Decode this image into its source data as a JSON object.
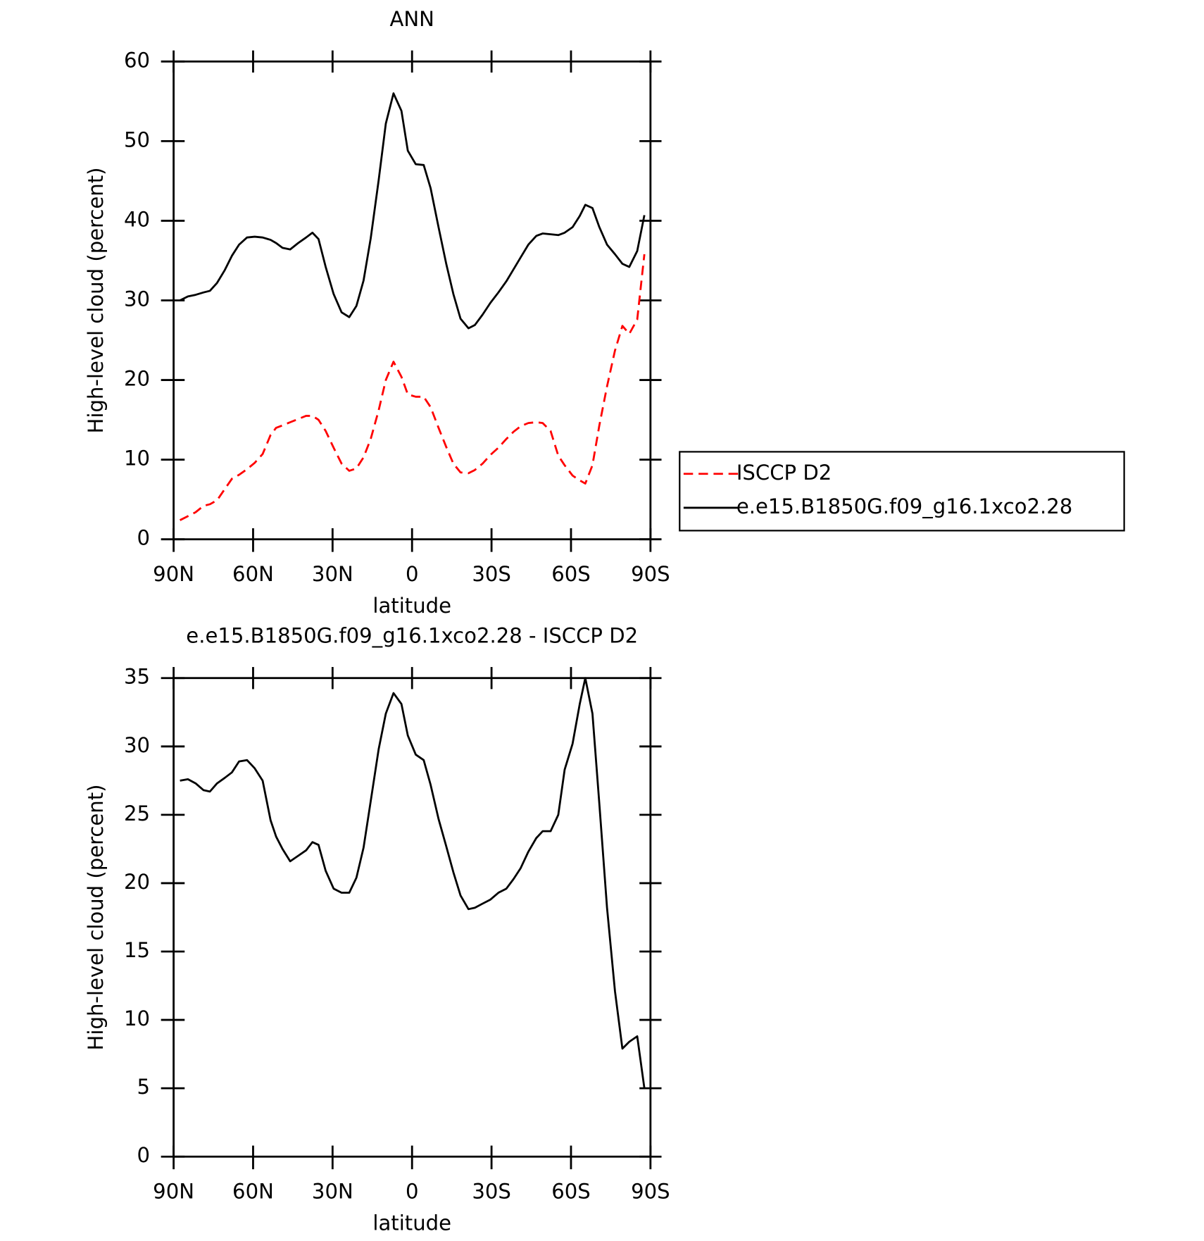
{
  "chart_data": [
    {
      "type": "line",
      "title": "ANN",
      "xlabel": "latitude",
      "ylabel": "High-level cloud (percent)",
      "xlim": [
        90,
        -90
      ],
      "xticks": [
        {
          "value": 90,
          "label": "90N"
        },
        {
          "value": 60,
          "label": "60N"
        },
        {
          "value": 30,
          "label": "30N"
        },
        0,
        {
          "value": -30,
          "label": "30S"
        },
        {
          "value": -60,
          "label": "60S"
        },
        {
          "value": -90,
          "label": "90S"
        }
      ],
      "ylim": [
        0,
        60
      ],
      "yticks": [
        0,
        10,
        20,
        30,
        40,
        50,
        60
      ],
      "legend": "right",
      "x": [
        87.6,
        84.6,
        81.7,
        78.7,
        76.3,
        73.6,
        70.7,
        68.0,
        65.3,
        62.3,
        59.4,
        56.4,
        53.4,
        51.3,
        48.9,
        46.0,
        43.0,
        40.0,
        37.6,
        35.3,
        32.6,
        29.6,
        26.6,
        23.7,
        21.0,
        18.3,
        15.6,
        12.6,
        9.9,
        7.0,
        4.0,
        1.6,
        -1.4,
        -4.4,
        -7.0,
        -10.0,
        -12.9,
        -15.6,
        -18.3,
        -21.3,
        -23.7,
        -26.6,
        -29.6,
        -32.6,
        -35.6,
        -38.3,
        -41.0,
        -43.9,
        -46.9,
        -49.3,
        -52.3,
        -55.2,
        -57.6,
        -60.6,
        -63.3,
        -65.4,
        -68.1,
        -70.7,
        -73.6,
        -76.6,
        -79.4,
        -82.0,
        -85.0,
        -87.7
      ],
      "series": [
        {
          "name": "ISCCP D2",
          "color": "#ff0000",
          "dashed": true,
          "values": [
            2.4,
            2.9,
            3.4,
            4.2,
            4.4,
            4.9,
            6.3,
            7.6,
            8.1,
            8.8,
            9.6,
            10.7,
            13.1,
            14.0,
            14.3,
            14.7,
            15.1,
            15.5,
            15.5,
            15.0,
            13.6,
            11.5,
            9.5,
            8.6,
            8.9,
            10.3,
            12.6,
            16.2,
            20.0,
            22.3,
            20.4,
            18.2,
            17.9,
            17.9,
            16.6,
            14.0,
            11.6,
            9.5,
            8.4,
            8.3,
            8.7,
            9.5,
            10.6,
            11.5,
            12.6,
            13.5,
            14.2,
            14.6,
            14.7,
            14.6,
            13.6,
            10.5,
            9.3,
            8.0,
            7.4,
            7.0,
            9.3,
            14.3,
            19.2,
            23.7,
            26.8,
            25.8,
            27.6,
            35.8
          ]
        },
        {
          "name": "e.e15.B1850G.f09_g16.1xco2.28",
          "color": "#000000",
          "dashed": false,
          "values": [
            30.0,
            30.5,
            30.7,
            31.0,
            31.2,
            32.2,
            33.8,
            35.6,
            37.0,
            37.9,
            38.0,
            37.9,
            37.6,
            37.2,
            36.6,
            36.4,
            37.2,
            37.9,
            38.5,
            37.7,
            34.2,
            30.8,
            28.5,
            27.9,
            29.3,
            32.5,
            37.8,
            45.1,
            52.2,
            56.0,
            53.8,
            48.8,
            47.1,
            47.0,
            44.1,
            39.2,
            34.6,
            30.8,
            27.7,
            26.5,
            26.9,
            28.2,
            29.7,
            31.0,
            32.4,
            33.9,
            35.4,
            37.0,
            38.1,
            38.4,
            38.3,
            38.2,
            38.5,
            39.2,
            40.6,
            42.0,
            41.6,
            39.2,
            37.0,
            35.8,
            34.6,
            34.2,
            36.2,
            40.7
          ]
        }
      ]
    },
    {
      "type": "line",
      "title": "e.e15.B1850G.f09_g16.1xco2.28 - ISCCP D2",
      "xlabel": "latitude",
      "ylabel": "High-level cloud (percent)",
      "xlim": [
        90,
        -90
      ],
      "xticks": [
        {
          "value": 90,
          "label": "90N"
        },
        {
          "value": 60,
          "label": "60N"
        },
        {
          "value": 30,
          "label": "30N"
        },
        0,
        {
          "value": -30,
          "label": "30S"
        },
        {
          "value": -60,
          "label": "60S"
        },
        {
          "value": -90,
          "label": "90S"
        }
      ],
      "ylim": [
        0,
        35
      ],
      "yticks": [
        0,
        5,
        10,
        15,
        20,
        25,
        30,
        35
      ],
      "x": [
        87.6,
        84.6,
        81.7,
        78.7,
        76.3,
        73.6,
        70.7,
        68.0,
        65.3,
        62.3,
        59.4,
        56.4,
        53.4,
        51.3,
        48.9,
        46.0,
        43.0,
        40.0,
        37.6,
        35.3,
        32.6,
        29.6,
        26.6,
        23.7,
        21.0,
        18.3,
        15.6,
        12.6,
        9.9,
        7.0,
        4.0,
        1.6,
        -1.4,
        -4.4,
        -7.0,
        -10.0,
        -12.9,
        -15.6,
        -18.3,
        -21.3,
        -23.7,
        -26.6,
        -29.6,
        -32.6,
        -35.6,
        -38.3,
        -41.0,
        -43.9,
        -46.9,
        -49.3,
        -52.3,
        -55.2,
        -57.6,
        -60.6,
        -63.3,
        -65.4,
        -68.1,
        -70.7,
        -73.6,
        -76.6,
        -79.4,
        -82.0,
        -85.0,
        -87.7
      ],
      "series": [
        {
          "color": "#000000",
          "dashed": false,
          "values": [
            27.5,
            27.6,
            27.3,
            26.8,
            26.7,
            27.3,
            27.7,
            28.1,
            28.9,
            29.0,
            28.4,
            27.5,
            24.6,
            23.4,
            22.5,
            21.6,
            22.0,
            22.4,
            23.0,
            22.8,
            20.9,
            19.6,
            19.3,
            19.3,
            20.4,
            22.6,
            26.0,
            29.8,
            32.4,
            33.9,
            33.1,
            30.8,
            29.4,
            29.0,
            27.2,
            24.7,
            22.7,
            20.8,
            19.1,
            18.1,
            18.2,
            18.5,
            18.8,
            19.3,
            19.6,
            20.3,
            21.1,
            22.3,
            23.3,
            23.8,
            23.8,
            25.0,
            28.3,
            30.2,
            33.1,
            35.0,
            32.4,
            25.8,
            18.2,
            12.1,
            7.9,
            8.4,
            8.8,
            5.0
          ]
        }
      ]
    }
  ]
}
